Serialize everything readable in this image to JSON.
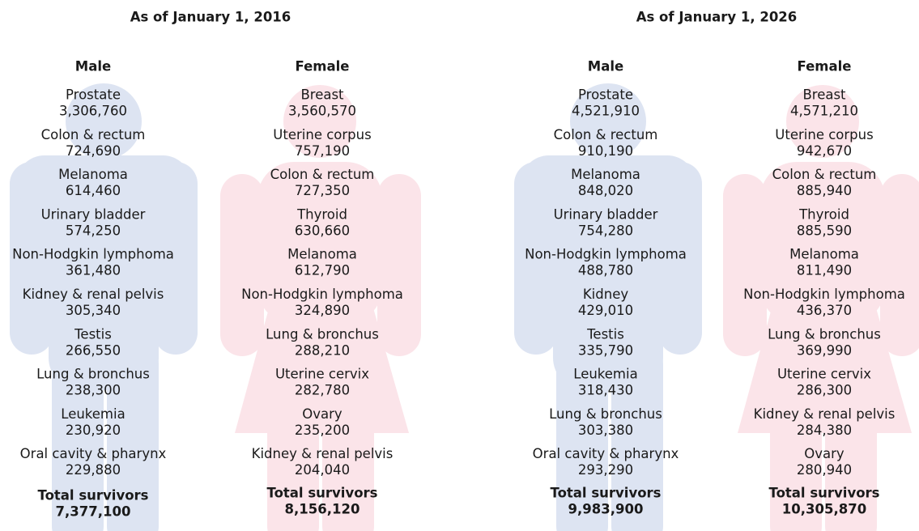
{
  "panels": [
    {
      "title": "As of January 1, 2016",
      "groups": [
        {
          "title": "Male",
          "items": [
            {
              "name": "Prostate",
              "value": "3,306,760"
            },
            {
              "name": "Colon & rectum",
              "value": "724,690"
            },
            {
              "name": "Melanoma",
              "value": "614,460"
            },
            {
              "name": "Urinary bladder",
              "value": "574,250"
            },
            {
              "name": "Non-Hodgkin lymphoma",
              "value": "361,480"
            },
            {
              "name": "Kidney & renal pelvis",
              "value": "305,340"
            },
            {
              "name": "Testis",
              "value": "266,550"
            },
            {
              "name": "Lung & bronchus",
              "value": "238,300"
            },
            {
              "name": "Leukemia",
              "value": "230,920"
            },
            {
              "name": "Oral cavity & pharynx",
              "value": "229,880"
            }
          ],
          "total_label": "Total survivors",
          "total": "7,377,100"
        },
        {
          "title": "Female",
          "items": [
            {
              "name": "Breast",
              "value": "3,560,570"
            },
            {
              "name": "Uterine corpus",
              "value": "757,190"
            },
            {
              "name": "Colon & rectum",
              "value": "727,350"
            },
            {
              "name": "Thyroid",
              "value": "630,660"
            },
            {
              "name": "Melanoma",
              "value": "612,790"
            },
            {
              "name": "Non-Hodgkin lymphoma",
              "value": "324,890"
            },
            {
              "name": "Lung & bronchus",
              "value": "288,210"
            },
            {
              "name": "Uterine cervix",
              "value": "282,780"
            },
            {
              "name": "Ovary",
              "value": "235,200"
            },
            {
              "name": "Kidney & renal pelvis",
              "value": "204,040"
            }
          ],
          "total_label": "Total survivors",
          "total": "8,156,120"
        }
      ]
    },
    {
      "title": "As of January 1, 2026",
      "groups": [
        {
          "title": "Male",
          "items": [
            {
              "name": "Prostate",
              "value": "4,521,910"
            },
            {
              "name": "Colon & rectum",
              "value": "910,190"
            },
            {
              "name": "Melanoma",
              "value": "848,020"
            },
            {
              "name": "Urinary bladder",
              "value": "754,280"
            },
            {
              "name": "Non-Hodgkin lymphoma",
              "value": "488,780"
            },
            {
              "name": "Kidney",
              "value": "429,010"
            },
            {
              "name": "Testis",
              "value": "335,790"
            },
            {
              "name": "Leukemia",
              "value": "318,430"
            },
            {
              "name": "Lung & bronchus",
              "value": "303,380"
            },
            {
              "name": "Oral cavity & pharynx",
              "value": "293,290"
            }
          ],
          "total_label": "Total survivors",
          "total": "9,983,900"
        },
        {
          "title": "Female",
          "items": [
            {
              "name": "Breast",
              "value": "4,571,210"
            },
            {
              "name": "Uterine corpus",
              "value": "942,670"
            },
            {
              "name": "Colon & rectum",
              "value": "885,940"
            },
            {
              "name": "Thyroid",
              "value": "885,590"
            },
            {
              "name": "Melanoma",
              "value": "811,490"
            },
            {
              "name": "Non-Hodgkin lymphoma",
              "value": "436,370"
            },
            {
              "name": "Lung & bronchus",
              "value": "369,990"
            },
            {
              "name": "Uterine cervix",
              "value": "286,300"
            },
            {
              "name": "Kidney & renal pelvis",
              "value": "284,380"
            },
            {
              "name": "Ovary",
              "value": "280,940"
            }
          ],
          "total_label": "Total survivors",
          "total": "10,305,870"
        }
      ]
    }
  ]
}
